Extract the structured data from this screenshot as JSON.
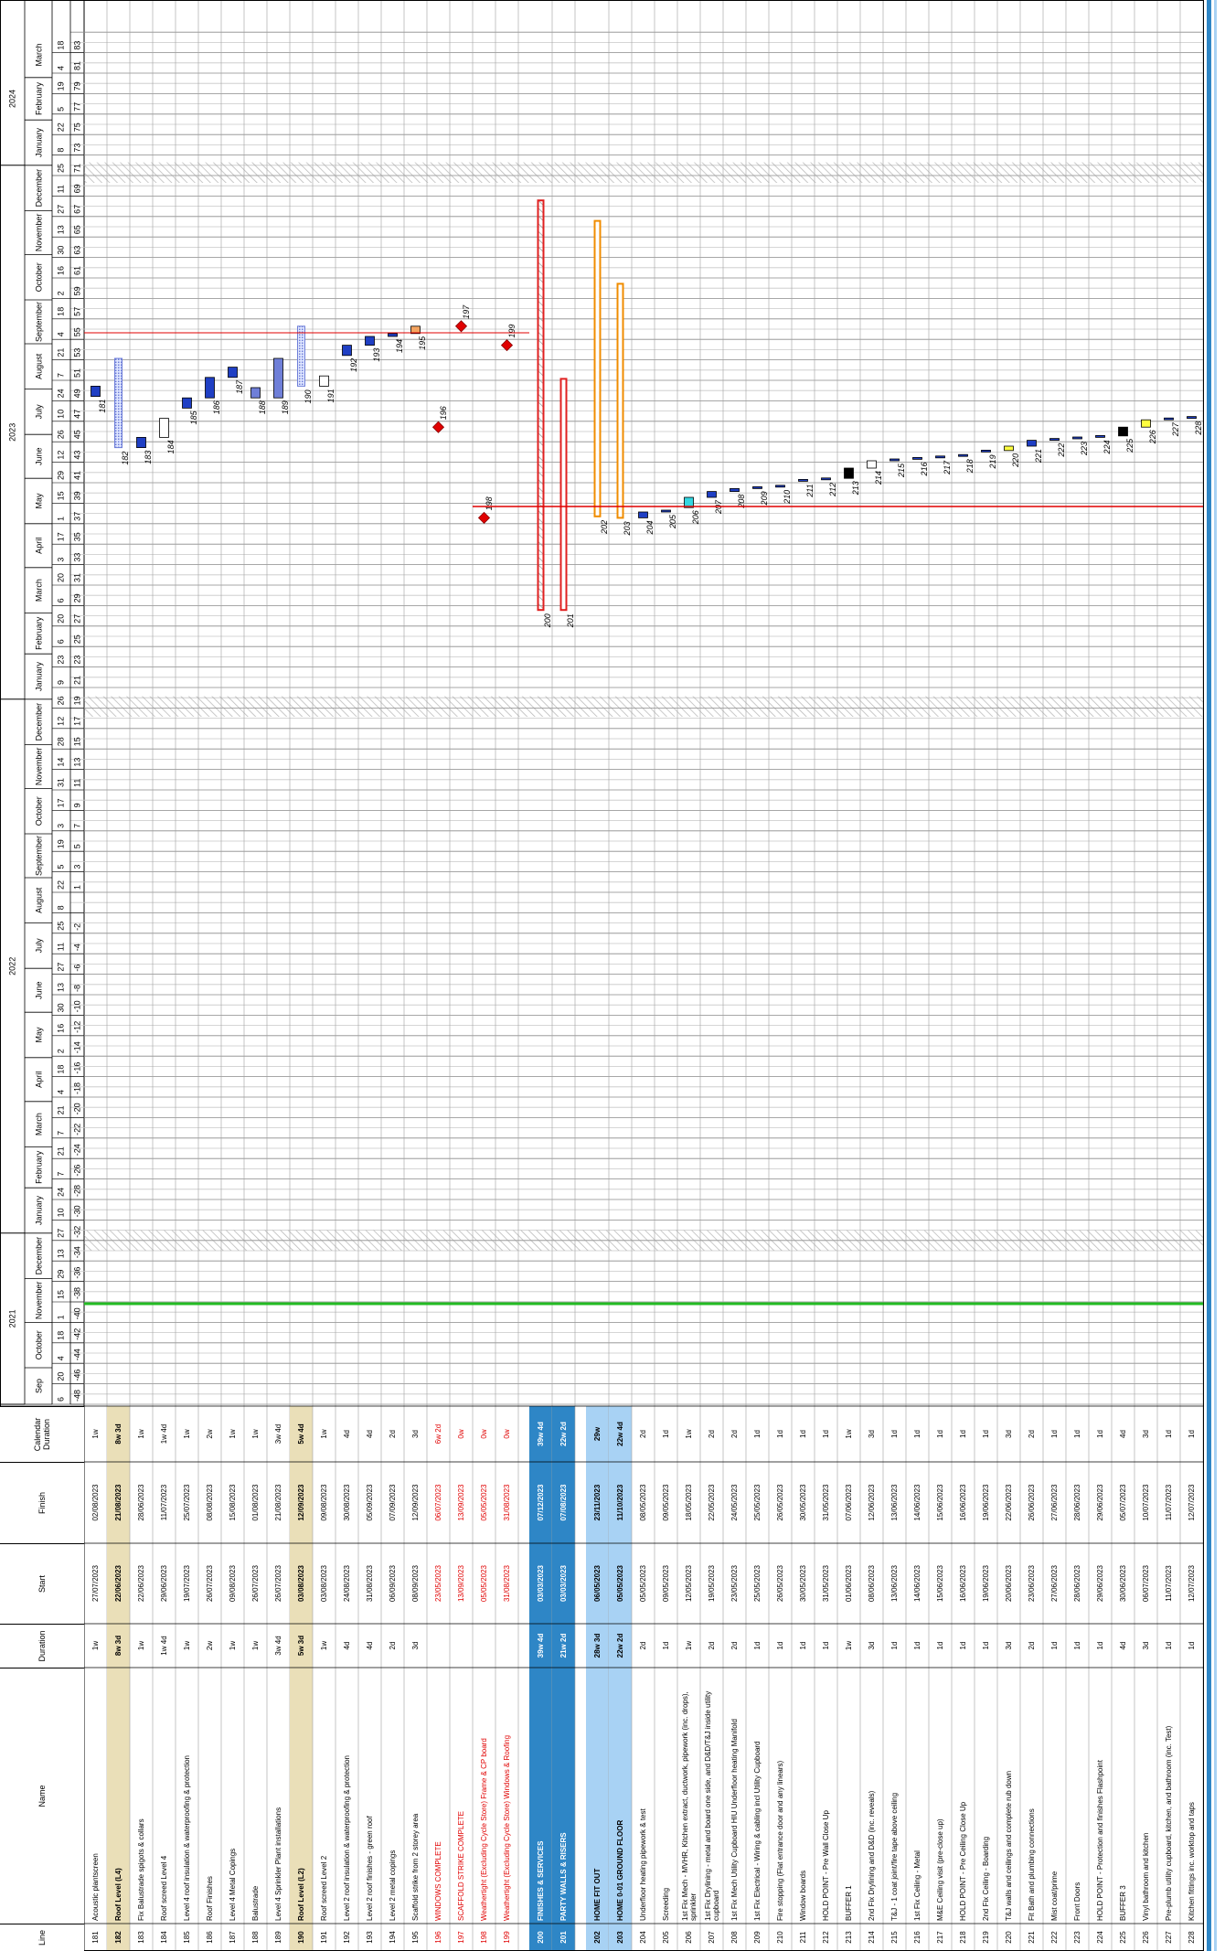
{
  "table": {
    "headers": [
      "Line",
      "Name",
      "Duration",
      "Start",
      "Finish",
      "Calendar Duration"
    ],
    "rows": [
      {
        "line": "181",
        "name": "Acoustic plantscreen",
        "duration": "1w",
        "start": "27/07/2023",
        "finish": "02/08/2023",
        "calendar_duration": "1w",
        "kind": "task"
      },
      {
        "line": "182",
        "name": "Roof Level (L4)",
        "duration": "8w 3d",
        "start": "22/06/2023",
        "finish": "21/08/2023",
        "calendar_duration": "8w 3d",
        "kind": "summary"
      },
      {
        "line": "183",
        "name": "Fix Balustrade spigots & collars",
        "duration": "1w",
        "start": "22/06/2023",
        "finish": "28/06/2023",
        "calendar_duration": "1w",
        "kind": "task"
      },
      {
        "line": "184",
        "name": "Roof screed Level 4",
        "duration": "1w 4d",
        "start": "29/06/2023",
        "finish": "11/07/2023",
        "calendar_duration": "1w 4d",
        "kind": "task",
        "color": "#ffffff"
      },
      {
        "line": "185",
        "name": "Level 4 roof insulation & waterproofing & protection",
        "duration": "1w",
        "start": "19/07/2023",
        "finish": "25/07/2023",
        "calendar_duration": "1w",
        "kind": "task"
      },
      {
        "line": "186",
        "name": "Roof Finishes",
        "duration": "2w",
        "start": "26/07/2023",
        "finish": "08/08/2023",
        "calendar_duration": "2w",
        "kind": "task"
      },
      {
        "line": "187",
        "name": "Level 4 Metal Copings",
        "duration": "1w",
        "start": "09/08/2023",
        "finish": "15/08/2023",
        "calendar_duration": "1w",
        "kind": "task"
      },
      {
        "line": "188",
        "name": "Balustrade",
        "duration": "1w",
        "start": "26/07/2023",
        "finish": "01/08/2023",
        "calendar_duration": "1w",
        "kind": "task",
        "color": "#6f7fd8"
      },
      {
        "line": "189",
        "name": "Level 4 Sprinkler Plant installations",
        "duration": "3w 4d",
        "start": "26/07/2023",
        "finish": "21/08/2023",
        "calendar_duration": "3w 4d",
        "kind": "task",
        "color": "#6f7fd8"
      },
      {
        "line": "190",
        "name": "Roof Level (L2)",
        "duration": "5w 3d",
        "start": "03/08/2023",
        "finish": "12/09/2023",
        "calendar_duration": "5w 4d",
        "kind": "summary"
      },
      {
        "line": "191",
        "name": "Roof screed Level 2",
        "duration": "1w",
        "start": "03/08/2023",
        "finish": "09/08/2023",
        "calendar_duration": "1w",
        "kind": "task",
        "color": "#ffffff"
      },
      {
        "line": "192",
        "name": "Level 2 roof insulation & waterproofing & protection",
        "duration": "4d",
        "start": "24/08/2023",
        "finish": "30/08/2023",
        "calendar_duration": "4d",
        "kind": "task"
      },
      {
        "line": "193",
        "name": "Level 2 roof finishes - green roof",
        "duration": "4d",
        "start": "31/08/2023",
        "finish": "05/09/2023",
        "calendar_duration": "4d",
        "kind": "task"
      },
      {
        "line": "194",
        "name": "Level 2 metal copings",
        "duration": "2d",
        "start": "06/09/2023",
        "finish": "07/09/2023",
        "calendar_duration": "2d",
        "kind": "task"
      },
      {
        "line": "195",
        "name": "Scaffold strike from 2 storey area",
        "duration": "3d",
        "start": "08/09/2023",
        "finish": "12/09/2023",
        "calendar_duration": "3d",
        "kind": "task",
        "color": "#f4a460"
      },
      {
        "line": "196",
        "name": "WINDOWS COMPLETE",
        "start": "23/05/2023",
        "finish": "06/07/2023",
        "calendar_duration": "6w 2d",
        "kind": "milestone"
      },
      {
        "line": "197",
        "name": "SCAFFOLD STRIKE COMPLETE",
        "start": "13/09/2023",
        "finish": "13/09/2023",
        "calendar_duration": "0w",
        "kind": "milestone"
      },
      {
        "line": "198",
        "name": "Weathertight (Excluding Cycle Store) Frame & CP board",
        "start": "05/05/2023",
        "finish": "05/05/2023",
        "calendar_duration": "0w",
        "kind": "milestone"
      },
      {
        "line": "199",
        "name": "Weathertight (Excluding Cycle Store) Windows & Roofing",
        "start": "31/08/2023",
        "finish": "31/08/2023",
        "calendar_duration": "0w",
        "kind": "milestone"
      },
      {
        "line": "200",
        "name": "FINISHES & SERVICES",
        "duration": "39w 4d",
        "start": "03/03/2023",
        "finish": "07/12/2023",
        "calendar_duration": "39w 4d",
        "kind": "section",
        "color": "#e02020"
      },
      {
        "line": "201",
        "name": "PARTY WALLS & RISERS",
        "duration": "21w 2d",
        "start": "03/03/2023",
        "finish": "07/08/2023",
        "calendar_duration": "22w 2d",
        "kind": "section",
        "color": "#e02020"
      },
      {
        "line": "202",
        "name": "HOME FIT OUT",
        "duration": "28w 3d",
        "start": "06/05/2023",
        "finish": "23/11/2023",
        "calendar_duration": "29w",
        "kind": "fitout",
        "color": "#f08c00"
      },
      {
        "line": "203",
        "name": "HOME 0-01 GROUND FLOOR",
        "duration": "22w 2d",
        "start": "05/05/2023",
        "finish": "11/10/2023",
        "calendar_duration": "22w 4d",
        "kind": "fitout",
        "color": "#f08c00"
      },
      {
        "line": "204",
        "name": "Underfloor heating pipework & test",
        "duration": "2d",
        "start": "05/05/2023",
        "finish": "08/05/2023",
        "calendar_duration": "2d",
        "kind": "task"
      },
      {
        "line": "205",
        "name": "Screeding",
        "duration": "1d",
        "start": "09/05/2023",
        "finish": "09/05/2023",
        "calendar_duration": "1d",
        "kind": "task"
      },
      {
        "line": "206",
        "name": "1st Fix Mech - MVHR, Kitchen extract, ductwork, pipework (inc. drops), sprinkler",
        "duration": "1w",
        "start": "12/05/2023",
        "finish": "18/05/2023",
        "calendar_duration": "1w",
        "kind": "task",
        "color": "#33d6e0"
      },
      {
        "line": "207",
        "name": "1st Fix Drylining - metal and board one side, and D&D/T&J inside utility cupboard",
        "duration": "2d",
        "start": "19/05/2023",
        "finish": "22/05/2023",
        "calendar_duration": "2d",
        "kind": "task"
      },
      {
        "line": "208",
        "name": "1st Fix Mech Utility Cupboard HIU Underfloor heating Manifold",
        "duration": "2d",
        "start": "23/05/2023",
        "finish": "24/05/2023",
        "calendar_duration": "2d",
        "kind": "task"
      },
      {
        "line": "209",
        "name": "1st Fix Electrical - Wiring & cabling incl Utility Cupboard",
        "duration": "1d",
        "start": "25/05/2023",
        "finish": "25/05/2023",
        "calendar_duration": "1d",
        "kind": "task"
      },
      {
        "line": "210",
        "name": "Fire stopping (Flat entrance door and any linears)",
        "duration": "1d",
        "start": "26/05/2023",
        "finish": "26/05/2023",
        "calendar_duration": "1d",
        "kind": "task"
      },
      {
        "line": "211",
        "name": "Window boards",
        "duration": "1d",
        "start": "30/05/2023",
        "finish": "30/05/2023",
        "calendar_duration": "1d",
        "kind": "task"
      },
      {
        "line": "212",
        "name": "HOLD POINT - Pre Wall Close Up",
        "duration": "1d",
        "start": "31/05/2023",
        "finish": "31/05/2023",
        "calendar_duration": "1d",
        "kind": "task"
      },
      {
        "line": "213",
        "name": "BUFFER 1",
        "duration": "1w",
        "start": "01/06/2023",
        "finish": "07/06/2023",
        "calendar_duration": "1w",
        "kind": "task",
        "color": "#000000"
      },
      {
        "line": "214",
        "name": "2nd Fix Drylining and D&D (inc. reveals)",
        "duration": "3d",
        "start": "08/06/2023",
        "finish": "12/06/2023",
        "calendar_duration": "3d",
        "kind": "task",
        "color": "#ffffff"
      },
      {
        "line": "215",
        "name": "T&J - 1 coat joint/fire tape above ceiling",
        "duration": "1d",
        "start": "13/06/2023",
        "finish": "13/06/2023",
        "calendar_duration": "1d",
        "kind": "task"
      },
      {
        "line": "216",
        "name": "1st Fix Ceiling - Metal",
        "duration": "1d",
        "start": "14/06/2023",
        "finish": "14/06/2023",
        "calendar_duration": "1d",
        "kind": "task"
      },
      {
        "line": "217",
        "name": "M&E Ceiling visit (pre-close up)",
        "duration": "1d",
        "start": "15/06/2023",
        "finish": "15/06/2023",
        "calendar_duration": "1d",
        "kind": "task"
      },
      {
        "line": "218",
        "name": "HOLD POINT - Pre Ceiling Close Up",
        "duration": "1d",
        "start": "16/06/2023",
        "finish": "16/06/2023",
        "calendar_duration": "1d",
        "kind": "task"
      },
      {
        "line": "219",
        "name": "2nd Fix Ceiling - Boarding",
        "duration": "1d",
        "start": "19/06/2023",
        "finish": "19/06/2023",
        "calendar_duration": "1d",
        "kind": "task"
      },
      {
        "line": "220",
        "name": "T&J walls and ceilings and complete rub down",
        "duration": "3d",
        "start": "20/06/2023",
        "finish": "22/06/2023",
        "calendar_duration": "3d",
        "kind": "task",
        "color": "#ffff40"
      },
      {
        "line": "221",
        "name": "Fit Bath and plumbing connections",
        "duration": "2d",
        "start": "23/06/2023",
        "finish": "26/06/2023",
        "calendar_duration": "2d",
        "kind": "task"
      },
      {
        "line": "222",
        "name": "Mist coat/prime",
        "duration": "1d",
        "start": "27/06/2023",
        "finish": "27/06/2023",
        "calendar_duration": "1d",
        "kind": "task"
      },
      {
        "line": "223",
        "name": "Front Doors",
        "duration": "1d",
        "start": "28/06/2023",
        "finish": "28/06/2023",
        "calendar_duration": "1d",
        "kind": "task"
      },
      {
        "line": "224",
        "name": "HOLD POINT - Protection and finishes Flashpoint",
        "duration": "1d",
        "start": "29/06/2023",
        "finish": "29/06/2023",
        "calendar_duration": "1d",
        "kind": "task"
      },
      {
        "line": "225",
        "name": "BUFFER 3",
        "duration": "4d",
        "start": "30/06/2023",
        "finish": "05/07/2023",
        "calendar_duration": "4d",
        "kind": "task",
        "color": "#000000"
      },
      {
        "line": "226",
        "name": "Vinyl bathroom and kitchen",
        "duration": "3d",
        "start": "06/07/2023",
        "finish": "10/07/2023",
        "calendar_duration": "3d",
        "kind": "task",
        "color": "#ffff40"
      },
      {
        "line": "227",
        "name": "Pre-plumb utility cupboard, kitchen, and bathroom (inc. Test)",
        "duration": "1d",
        "start": "11/07/2023",
        "finish": "11/07/2023",
        "calendar_duration": "1d",
        "kind": "task"
      },
      {
        "line": "228",
        "name": "Kitchen fittings inc. worktop and taps",
        "duration": "1d",
        "start": "12/07/2023",
        "finish": "12/07/2023",
        "calendar_duration": "1d",
        "kind": "task"
      }
    ]
  },
  "timeline": {
    "years": [
      "2021",
      "2022",
      "2023",
      "2024"
    ],
    "months": [
      "Sep",
      "October",
      "November",
      "December",
      "January",
      "February",
      "March",
      "April",
      "May",
      "June",
      "July",
      "August",
      "September",
      "October",
      "November",
      "December",
      "January",
      "February",
      "March",
      "April",
      "May",
      "June",
      "July",
      "August",
      "September",
      "October",
      "November",
      "December",
      "January",
      "February",
      "March"
    ],
    "days": [
      "6",
      "20",
      "4",
      "18",
      "1",
      "15",
      "29",
      "13",
      "27",
      "10",
      "24",
      "7",
      "21",
      "7",
      "21",
      "4",
      "18",
      "2",
      "16",
      "30",
      "13",
      "27",
      "11",
      "25",
      "8",
      "22",
      "5",
      "19",
      "3",
      "17",
      "31",
      "14",
      "28",
      "12",
      "26",
      "9",
      "23",
      "6",
      "20",
      "6",
      "20",
      "3",
      "17",
      "1",
      "15",
      "29",
      "12",
      "26",
      "10",
      "24",
      "7",
      "21",
      "4",
      "18",
      "2",
      "16",
      "30",
      "13",
      "27",
      "11",
      "25",
      "8",
      "22",
      "5",
      "19",
      "4",
      "18"
    ],
    "weeks": [
      -48,
      -46,
      -44,
      -42,
      -40,
      -38,
      -36,
      -34,
      -32,
      -30,
      -28,
      -26,
      -24,
      -22,
      -20,
      -18,
      -16,
      -14,
      -12,
      -10,
      -8,
      -6,
      -4,
      -2,
      null,
      1,
      3,
      5,
      7,
      9,
      11,
      13,
      15,
      17,
      19,
      21,
      23,
      25,
      27,
      29,
      31,
      33,
      35,
      37,
      39,
      41,
      43,
      45,
      47,
      49,
      51,
      53,
      55,
      57,
      59,
      61,
      63,
      65,
      67,
      69,
      71,
      73,
      75,
      77,
      79,
      81,
      83
    ]
  }
}
